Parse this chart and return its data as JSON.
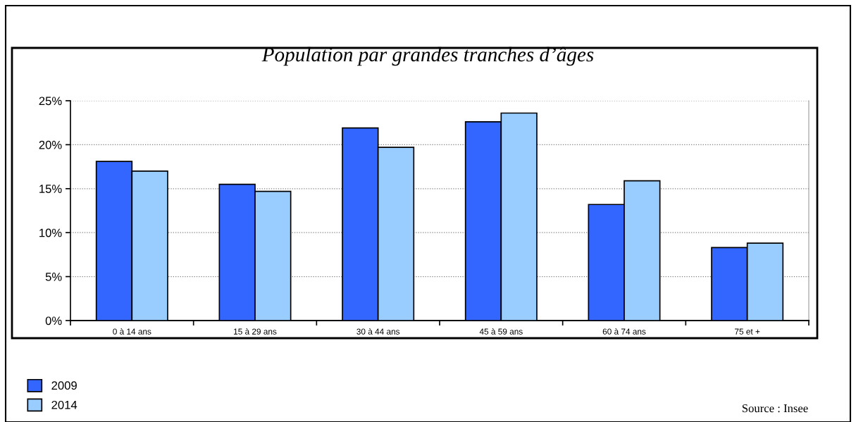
{
  "chart_data": {
    "type": "bar",
    "title": "Population par grandes tranches d’âges",
    "categories": [
      "0 à 14 ans",
      "15 à 29 ans",
      "30 à 44 ans",
      "45 à 59 ans",
      "60 à 74 ans",
      "75 et +"
    ],
    "series": [
      {
        "name": "2009",
        "color": "#3366ff",
        "values": [
          18.1,
          15.5,
          21.9,
          22.6,
          13.2,
          8.3
        ]
      },
      {
        "name": "2014",
        "color": "#99ccff",
        "values": [
          17.0,
          14.7,
          19.7,
          23.6,
          15.9,
          8.8
        ]
      }
    ],
    "ylim": [
      0,
      25
    ],
    "yticks": [
      {
        "value": 0,
        "label": "0%"
      },
      {
        "value": 5,
        "label": "5%"
      },
      {
        "value": 10,
        "label": "10%"
      },
      {
        "value": 15,
        "label": "15%"
      },
      {
        "value": 20,
        "label": "20%"
      },
      {
        "value": 25,
        "label": "25%"
      }
    ],
    "grid": "y",
    "legend": "bottom left",
    "annotations": [
      "Source : Insee"
    ]
  }
}
